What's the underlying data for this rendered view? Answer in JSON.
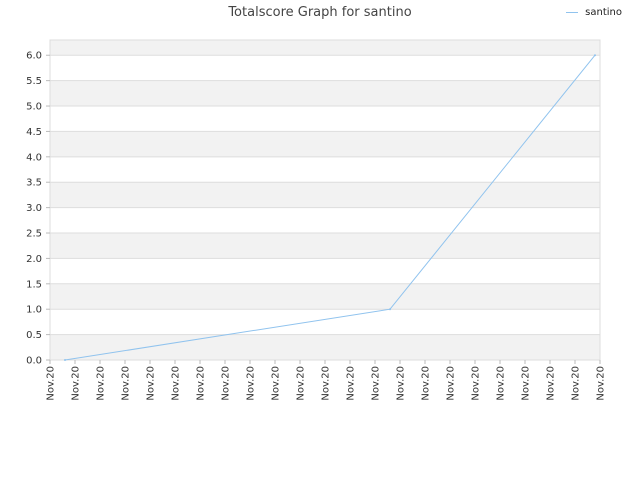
{
  "chart_data": {
    "type": "line",
    "title": "Totalscore Graph for santino",
    "xlabel": "",
    "ylabel": "",
    "categories": [
      "Nov.20",
      "Nov.20",
      "Nov.20",
      "Nov.20",
      "Nov.20",
      "Nov.20",
      "Nov.20",
      "Nov.20",
      "Nov.20",
      "Nov.20",
      "Nov.20",
      "Nov.20",
      "Nov.20",
      "Nov.20",
      "Nov.20",
      "Nov.20",
      "Nov.20",
      "Nov.20",
      "Nov.20",
      "Nov.20",
      "Nov.20",
      "Nov.20",
      "Nov.20"
    ],
    "y_ticks": [
      "0.0",
      "0.5",
      "1.0",
      "1.5",
      "2.0",
      "2.5",
      "3.0",
      "3.5",
      "4.0",
      "4.5",
      "5.0",
      "5.5",
      "6.0"
    ],
    "ylim": [
      0,
      6.3
    ],
    "grid": true,
    "legend_position": "top-right",
    "series": [
      {
        "name": "santino",
        "color": "#90c3ee",
        "points": [
          {
            "x": 0.6,
            "y": 0
          },
          {
            "x": 13.6,
            "y": 1
          },
          {
            "x": 21.8,
            "y": 6
          }
        ]
      }
    ],
    "band_color": "#f2f2f2",
    "grid_color": "#dddddd"
  }
}
